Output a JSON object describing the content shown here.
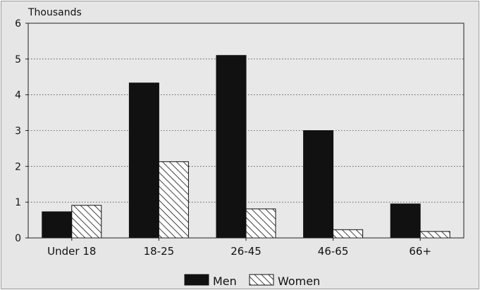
{
  "chart_data": {
    "type": "bar",
    "unit_label": "Thousands",
    "categories": [
      "Under 18",
      "18-25",
      "26-45",
      "46-65",
      "66+"
    ],
    "series": [
      {
        "name": "Men",
        "values": [
          0.73,
          4.33,
          5.1,
          3.0,
          0.95
        ],
        "color": "#111111",
        "pattern": "solid"
      },
      {
        "name": "Women",
        "values": [
          0.91,
          2.13,
          0.81,
          0.23,
          0.18
        ],
        "color": "#111111",
        "pattern": "diagonal-hatch"
      }
    ],
    "ylim": [
      0,
      6
    ],
    "yticks": [
      0,
      1,
      2,
      3,
      4,
      5,
      6
    ],
    "grid": "horizontal-dotted",
    "legend_position": "bottom-center"
  }
}
